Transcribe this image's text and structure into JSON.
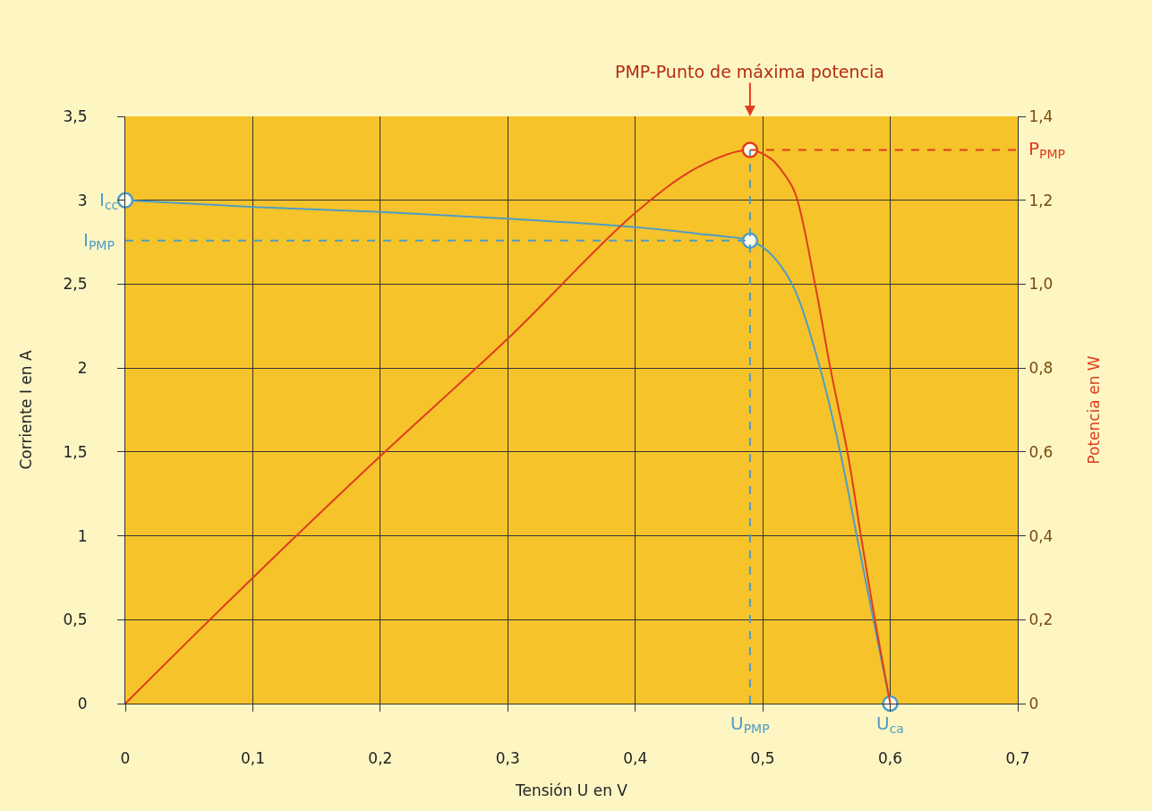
{
  "chart_data": {
    "type": "line",
    "xlabel": "Tensión U en V",
    "ylabel": "Corriente I en A",
    "y2label": "Potencia en W",
    "series": [
      {
        "color": "#4f9cc6",
        "x": [
          0,
          0.1,
          0.2,
          0.3,
          0.4,
          0.45,
          0.49,
          0.5,
          0.51,
          0.525,
          0.546,
          0.561,
          0.574,
          0.587,
          0.6
        ],
        "values": [
          3.0,
          2.96,
          2.93,
          2.89,
          2.84,
          2.8,
          2.76,
          2.72,
          2.65,
          2.47,
          1.97,
          1.49,
          0.99,
          0.49,
          0
        ]
      },
      {
        "color": "#e03c1e",
        "axis": "y2",
        "x": [
          0,
          0.1,
          0.2,
          0.3,
          0.4,
          0.45,
          0.49,
          0.506,
          0.515,
          0.525,
          0.541,
          0.553,
          0.567,
          0.577,
          0.588,
          0.6
        ],
        "values": [
          0,
          0.3,
          0.59,
          0.87,
          1.17,
          1.28,
          1.32,
          1.3,
          1.27,
          1.22,
          1.0,
          0.8,
          0.59,
          0.4,
          0.2,
          0
        ]
      },
      {
        "type": "scatter",
        "color": "#4f9cc6",
        "marker": "circle",
        "x": [
          0,
          0.49,
          0.6
        ],
        "values": [
          3.0,
          2.76,
          0
        ]
      },
      {
        "type": "scatter",
        "color": "#e03c1e",
        "marker": "circle",
        "axis": "y2",
        "x": [
          0.49
        ],
        "values": [
          1.32
        ]
      }
    ],
    "xlim": [
      0,
      0.7
    ],
    "ylim": [
      0,
      3.5
    ],
    "y2lim": [
      0,
      1.4
    ],
    "xticks": [
      0,
      {
        "value": 0.1,
        "label": "0,1"
      },
      {
        "value": 0.2,
        "label": "0,2"
      },
      {
        "value": 0.3,
        "label": "0,3"
      },
      {
        "value": 0.4,
        "label": "0,4"
      },
      {
        "value": 0.5,
        "label": "0,5"
      },
      {
        "value": 0.6,
        "label": "0,6"
      },
      {
        "value": 0.7,
        "label": "0,7"
      }
    ],
    "yticks": [
      0,
      {
        "value": 0.5,
        "label": "0,5"
      },
      1,
      {
        "value": 1.5,
        "label": "1,5"
      },
      2,
      {
        "value": 2.5,
        "label": "2,5"
      },
      3,
      {
        "value": 3.5,
        "label": "3,5"
      }
    ],
    "y2ticks": [
      0,
      {
        "value": 0.2,
        "label": "0,2"
      },
      {
        "value": 0.4,
        "label": "0,4"
      },
      {
        "value": 0.6,
        "label": "0,6"
      },
      {
        "value": 0.8,
        "label": "0,8"
      },
      {
        "value": 1.0,
        "label": "1,0"
      },
      {
        "value": 1.2,
        "label": "1,2"
      },
      {
        "value": 1.4,
        "label": "1,4"
      }
    ],
    "ref_lines": [
      {
        "axis": "y",
        "value": 2.76,
        "label": "I$_{PMP}$",
        "color": "#4f9cc6",
        "line_style": "dashed"
      },
      {
        "axis": "y2",
        "value": 1.32,
        "label": "P$_{PMP}$",
        "color": "#e03c1e",
        "line_style": "dashed"
      },
      {
        "axis": "x",
        "value": 0.49,
        "label": "U$_{PMP}$",
        "color": "#4f9cc6",
        "line_style": "dashed"
      }
    ],
    "annotations": [
      "PMP-Punto de máxima potencia",
      {
        "text": "I$_{cc}$",
        "x": 0,
        "y": 3.0
      },
      {
        "text": "U$_{ca}$",
        "x": 0.6,
        "y": 0
      }
    ],
    "grid": true,
    "line_style": "solid"
  }
}
